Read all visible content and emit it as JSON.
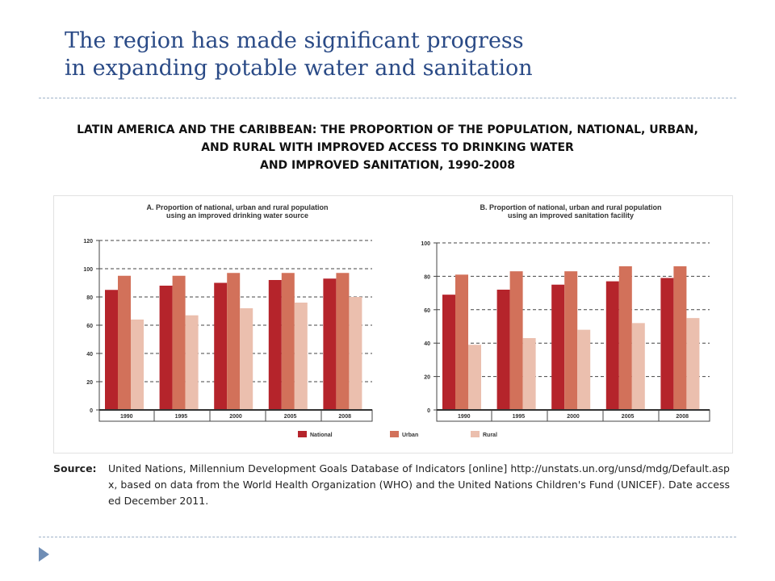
{
  "slide": {
    "title_line1": "The region has made significant progress",
    "title_line2": "in expanding potable water and sanitation"
  },
  "figure": {
    "title_line1": "LATIN AMERICA AND THE CARIBBEAN: THE PROPORTION OF THE POPULATION, NATIONAL, URBAN,",
    "title_line2": "AND RURAL WITH IMPROVED ACCESS TO DRINKING WATER",
    "title_line3": "AND IMPROVED SANITATION, 1990-2008"
  },
  "legend": [
    {
      "name": "National",
      "color": "#b5242b"
    },
    {
      "name": "Urban",
      "color": "#d2715a"
    },
    {
      "name": "Rural",
      "color": "#ebbfae"
    }
  ],
  "source": {
    "label": "Source:",
    "text": "United Nations, Millennium Development Goals Database of Indicators [online] http://unstats.un.org/unsd/mdg/Default.aspx, based on data from the World Health Organization (WHO) and the United Nations Children's Fund (UNICEF). Date accessed December 2011."
  },
  "chart_data": [
    {
      "type": "bar",
      "title": "A. Proportion of national, urban and rural population using an improved drinking water source",
      "categories": [
        "1990",
        "1995",
        "2000",
        "2005",
        "2008"
      ],
      "ylim": [
        0,
        120
      ],
      "yticks": [
        0,
        20,
        40,
        60,
        80,
        100,
        120
      ],
      "grid": true,
      "series": [
        {
          "name": "National",
          "values": [
            85,
            88,
            90,
            92,
            93
          ]
        },
        {
          "name": "Urban",
          "values": [
            95,
            95,
            97,
            97,
            97
          ]
        },
        {
          "name": "Rural",
          "values": [
            64,
            67,
            72,
            76,
            80
          ]
        }
      ]
    },
    {
      "type": "bar",
      "title": "B. Proportion of national, urban and rural population using an improved sanitation facility",
      "categories": [
        "1990",
        "1995",
        "2000",
        "2005",
        "2008"
      ],
      "ylim": [
        0,
        100
      ],
      "yticks": [
        0,
        20,
        40,
        60,
        80,
        100
      ],
      "grid": true,
      "series": [
        {
          "name": "National",
          "values": [
            69,
            72,
            75,
            77,
            79
          ]
        },
        {
          "name": "Urban",
          "values": [
            81,
            83,
            83,
            86,
            86
          ]
        },
        {
          "name": "Rural",
          "values": [
            39,
            43,
            48,
            52,
            55
          ]
        }
      ]
    }
  ]
}
